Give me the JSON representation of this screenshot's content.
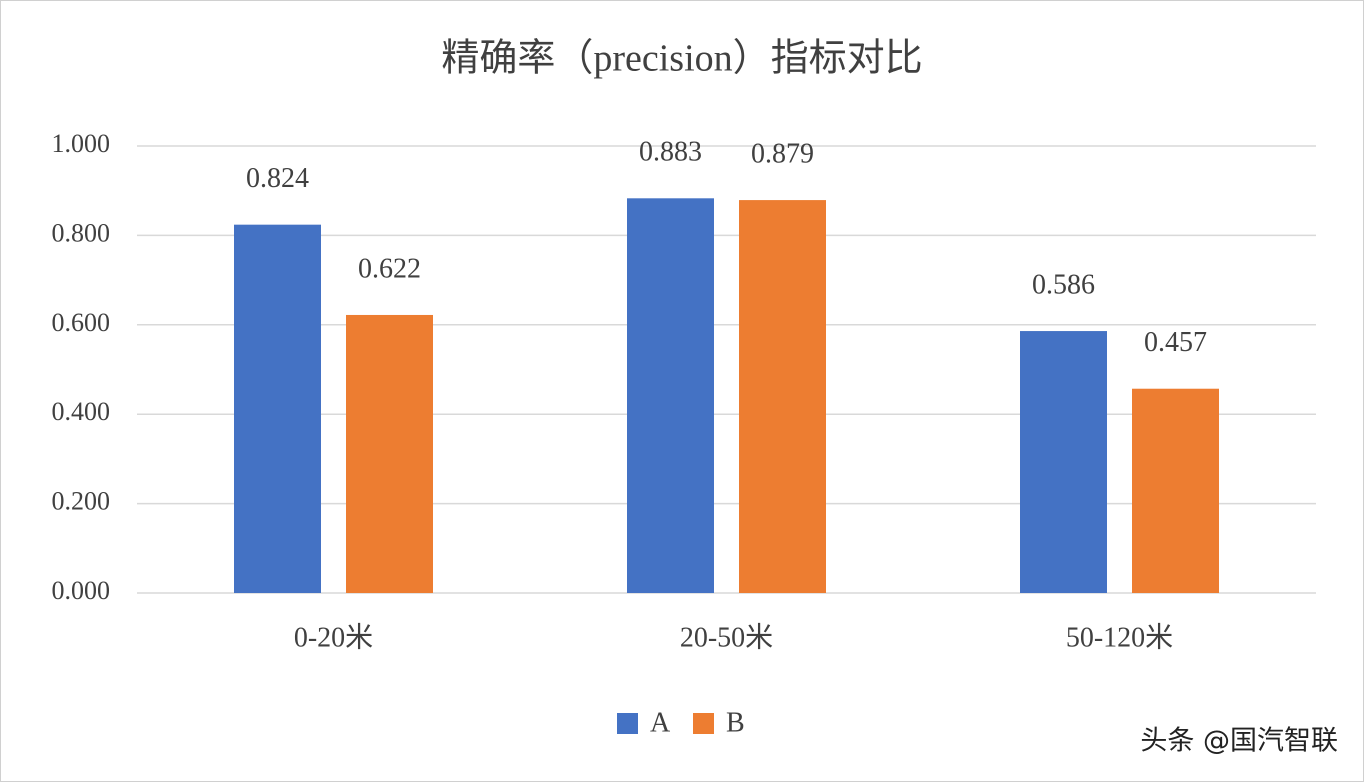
{
  "chart_data": {
    "type": "bar",
    "title": "精确率（precision）指标对比",
    "categories": [
      "0-20米",
      "20-50米",
      "50-120米"
    ],
    "series": [
      {
        "name": "A",
        "color": "#4472c4",
        "values": [
          0.824,
          0.883,
          0.586
        ]
      },
      {
        "name": "B",
        "color": "#ed7d31",
        "values": [
          0.622,
          0.879,
          0.457
        ]
      }
    ],
    "ylim": [
      0,
      1
    ],
    "yticks": [
      {
        "value": 0,
        "label": "0.000"
      },
      {
        "value": 0.2,
        "label": "0.200"
      },
      {
        "value": 0.4,
        "label": "0.400"
      },
      {
        "value": 0.6,
        "label": "0.600"
      },
      {
        "value": 0.8,
        "label": "0.800"
      },
      {
        "value": 1,
        "label": "1.000"
      }
    ],
    "grid": true,
    "legend": "bottom",
    "watermark": "头条 @国汽智联"
  }
}
